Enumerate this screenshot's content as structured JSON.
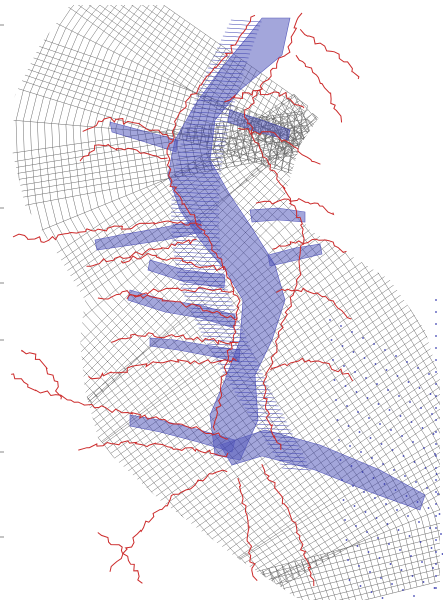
{
  "figure": {
    "kind": "curvilinear estuary model grid",
    "layers": [
      "grid-mesh",
      "water-cells",
      "shoreline",
      "open-boundary-nodes"
    ]
  },
  "colors": {
    "background": "#ffffff",
    "grid": "#6b6b6b",
    "water_cells": "#3b3fb0",
    "shoreline": "#cc2a2a",
    "boundary_nodes": "#3b3fb0"
  }
}
